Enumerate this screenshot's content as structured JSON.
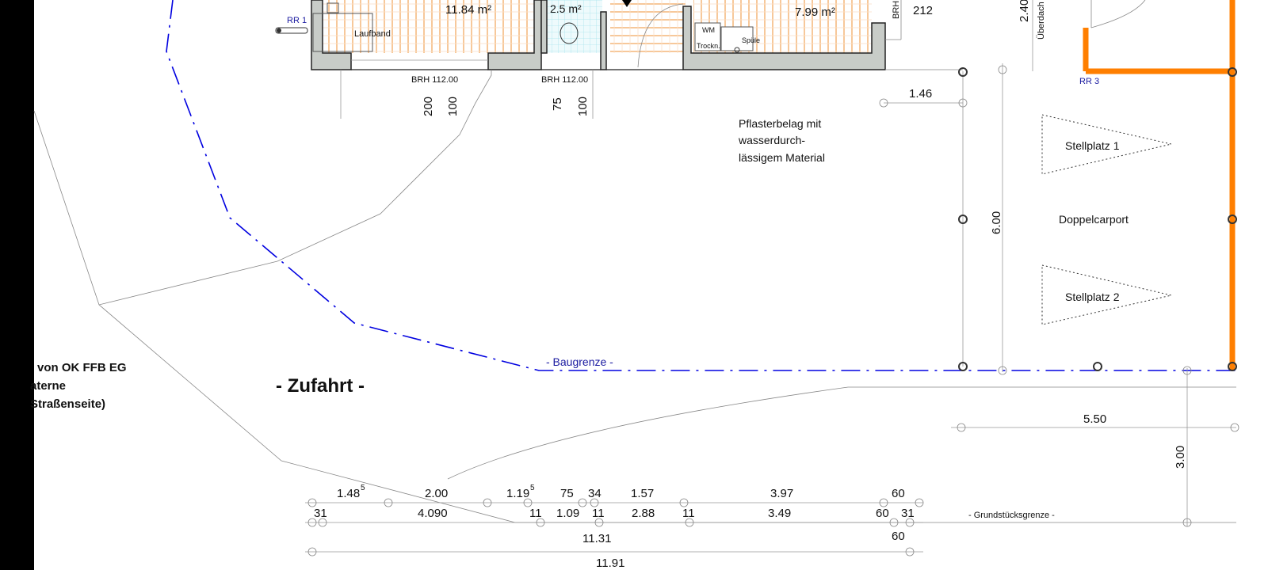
{
  "drawing": {
    "rooms": {
      "room1_area": "11.84 m²",
      "room1_fixture": "Laufband",
      "bath_area": "2.5 m²",
      "utility_area": "7.99 m²",
      "utility_fixture_1": "WM",
      "utility_fixture_2": "Trockn.",
      "utility_fixture_3": "Spüle"
    },
    "labels": {
      "rr1": "RR 1",
      "rr3": "RR 3",
      "brh_1": "BRH 112.00",
      "brh_2": "BRH 112.00",
      "brh_3": "BRH",
      "brh_3_value": "212",
      "overhang_dim": "2.40",
      "overhang_label": "Überdach",
      "paving_line1": "Pflasterbelag mit",
      "paving_line2": "wasserdurch-",
      "paving_line3": "lässigem Material",
      "parking1": "Stellplatz 1",
      "parking2": "Stellplatz 2",
      "carport": "Doppelcarport",
      "baugrenze": "- Baugrenze -",
      "zufahrt": "- Zufahrt -",
      "grundstuecksgrenze": "- Grundstücksgrenze -",
      "note_line1": "von OK FFB EG",
      "note_line2": "aterne",
      "note_line3": "Straßenseite)"
    },
    "dimensions": {
      "sill_200": "200",
      "sill_100a": "100",
      "sill_75": "75",
      "sill_100b": "100",
      "d_146": "1.46",
      "d_600": "6.00",
      "d_550": "5.50",
      "d_300": "3.00",
      "row1": [
        "1.48",
        "2.00",
        "1.19",
        "75",
        "34",
        "1.57",
        "3.97",
        "60"
      ],
      "row1_sup": [
        "5",
        "5"
      ],
      "row2": [
        "31",
        "4.090",
        "11",
        "1.09",
        "11",
        "2.88",
        "11",
        "3.49",
        "60",
        "31"
      ],
      "row3": [
        "11.31",
        "60"
      ],
      "row4": "11.91"
    },
    "colors": {
      "baugrenze": "#0000e0",
      "carport_frame": "#ff7f00",
      "wall": "#c8ccc8",
      "floor_hatch": "#f7c89a",
      "tile_hatch": "#a8e4ee"
    }
  }
}
